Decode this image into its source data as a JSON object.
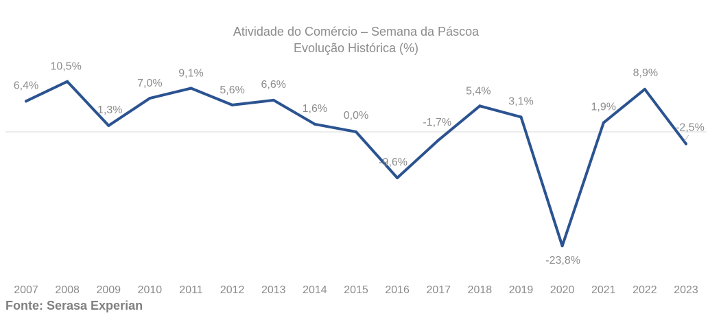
{
  "chart_data": {
    "type": "line",
    "title": "Atividade do Comércio – Semana da Páscoa",
    "subtitle": "Evolução Histórica (%)",
    "categories": [
      "2007",
      "2008",
      "2009",
      "2010",
      "2011",
      "2012",
      "2013",
      "2014",
      "2015",
      "2016",
      "2017",
      "2018",
      "2019",
      "2020",
      "2021",
      "2022",
      "2023"
    ],
    "values": [
      6.4,
      10.5,
      1.3,
      7.0,
      9.1,
      5.6,
      6.6,
      1.6,
      0.0,
      -9.6,
      -1.7,
      5.4,
      3.1,
      -23.8,
      1.9,
      8.9,
      -2.5
    ],
    "data_labels": [
      "6,4%",
      "10,5%",
      "1,3%",
      "7,0%",
      "9,1%",
      "5,6%",
      "6,6%",
      "1,6%",
      "0,0%",
      "-9,6%",
      "-1,7%",
      "5,4%",
      "3,1%",
      "-23,8%",
      "1,9%",
      "8,9%",
      "-2,5%"
    ],
    "xlabel": "",
    "ylabel": "",
    "ylim": [
      -25,
      12
    ],
    "grid": false,
    "zero_line": true,
    "line_color": "#2b5391",
    "text_color": "#8c8c8c",
    "source": "Fonte: Serasa Experian"
  }
}
